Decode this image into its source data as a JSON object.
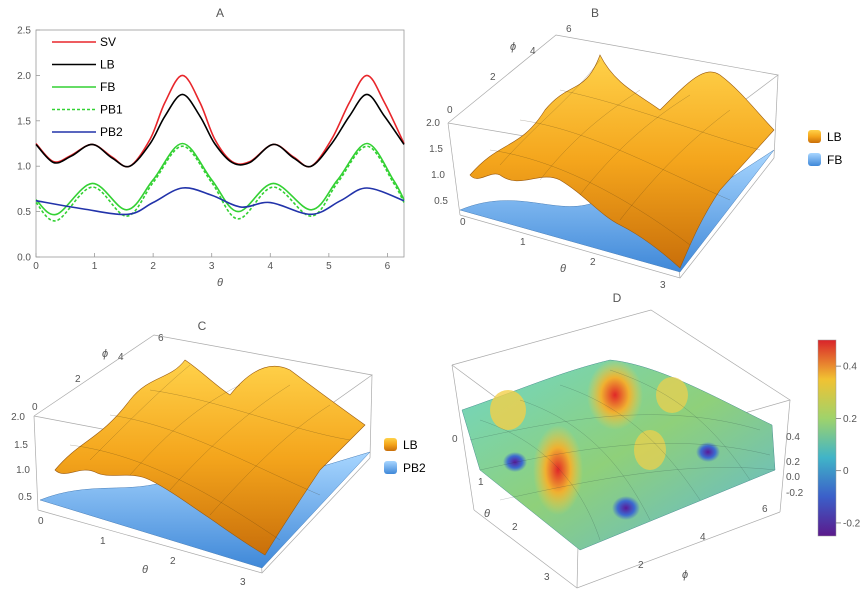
{
  "chart_data": [
    {
      "panel": "A",
      "type": "line",
      "title": "A",
      "xlabel": "θ",
      "ylabel": "",
      "xlim": [
        0,
        6.283
      ],
      "ylim": [
        0,
        2.5
      ],
      "xticks": [
        0,
        1,
        2,
        3,
        4,
        5,
        6
      ],
      "yticks": [
        0.0,
        0.5,
        1.0,
        1.5,
        2.0,
        2.5
      ],
      "ytick_labels": [
        "0.0",
        "0.5",
        "1.0",
        "1.5",
        "2.0",
        "2.5"
      ],
      "legend_position": "top-left",
      "series": [
        {
          "name": "SV",
          "color": "#e8262b",
          "dash": "solid",
          "values": [
            [
              0,
              1.25
            ],
            [
              0.3,
              1.05
            ],
            [
              0.6,
              1.12
            ],
            [
              0.96,
              1.24
            ],
            [
              1.3,
              1.1
            ],
            [
              1.6,
              1.0
            ],
            [
              1.95,
              1.3
            ],
            [
              2.2,
              1.7
            ],
            [
              2.5,
              2.0
            ],
            [
              2.8,
              1.7
            ],
            [
              3.05,
              1.3
            ],
            [
              3.35,
              1.05
            ],
            [
              3.65,
              1.05
            ],
            [
              4.05,
              1.24
            ],
            [
              4.4,
              1.1
            ],
            [
              4.7,
              1.0
            ],
            [
              5.05,
              1.3
            ],
            [
              5.35,
              1.7
            ],
            [
              5.65,
              2.0
            ],
            [
              5.95,
              1.7
            ],
            [
              6.283,
              1.25
            ]
          ]
        },
        {
          "name": "LB",
          "color": "#000000",
          "dash": "solid",
          "values": [
            [
              0,
              1.24
            ],
            [
              0.3,
              1.04
            ],
            [
              0.6,
              1.11
            ],
            [
              0.96,
              1.24
            ],
            [
              1.3,
              1.09
            ],
            [
              1.6,
              1.0
            ],
            [
              1.95,
              1.25
            ],
            [
              2.2,
              1.55
            ],
            [
              2.5,
              1.79
            ],
            [
              2.8,
              1.55
            ],
            [
              3.05,
              1.25
            ],
            [
              3.35,
              1.04
            ],
            [
              3.65,
              1.04
            ],
            [
              4.05,
              1.24
            ],
            [
              4.4,
              1.09
            ],
            [
              4.7,
              1.0
            ],
            [
              5.05,
              1.25
            ],
            [
              5.35,
              1.55
            ],
            [
              5.65,
              1.79
            ],
            [
              5.95,
              1.55
            ],
            [
              6.283,
              1.24
            ]
          ]
        },
        {
          "name": "FB",
          "color": "#33d133",
          "dash": "solid",
          "values": [
            [
              0,
              0.63
            ],
            [
              0.35,
              0.47
            ],
            [
              0.96,
              0.81
            ],
            [
              1.55,
              0.52
            ],
            [
              2.0,
              0.85
            ],
            [
              2.5,
              1.25
            ],
            [
              3.0,
              0.85
            ],
            [
              3.45,
              0.5
            ],
            [
              4.05,
              0.81
            ],
            [
              4.7,
              0.52
            ],
            [
              5.15,
              0.85
            ],
            [
              5.65,
              1.25
            ],
            [
              6.1,
              0.85
            ],
            [
              6.283,
              0.63
            ]
          ]
        },
        {
          "name": "PB1",
          "color": "#33d133",
          "dash": "dashed",
          "values": [
            [
              0,
              0.6
            ],
            [
              0.35,
              0.4
            ],
            [
              0.96,
              0.77
            ],
            [
              1.55,
              0.45
            ],
            [
              2.0,
              0.82
            ],
            [
              2.5,
              1.22
            ],
            [
              3.0,
              0.82
            ],
            [
              3.45,
              0.42
            ],
            [
              4.05,
              0.77
            ],
            [
              4.7,
              0.45
            ],
            [
              5.15,
              0.82
            ],
            [
              5.65,
              1.22
            ],
            [
              6.1,
              0.82
            ],
            [
              6.283,
              0.6
            ]
          ]
        },
        {
          "name": "PB2",
          "color": "#2233aa",
          "dash": "solid",
          "values": [
            [
              0,
              0.62
            ],
            [
              0.8,
              0.53
            ],
            [
              1.57,
              0.47
            ],
            [
              2.0,
              0.6
            ],
            [
              2.5,
              0.76
            ],
            [
              3.0,
              0.68
            ],
            [
              3.5,
              0.55
            ],
            [
              4.0,
              0.6
            ],
            [
              4.7,
              0.47
            ],
            [
              5.2,
              0.62
            ],
            [
              5.65,
              0.76
            ],
            [
              6.283,
              0.62
            ]
          ]
        }
      ]
    },
    {
      "panel": "B",
      "type": "surface3d",
      "title": "B",
      "xlabel": "θ",
      "ylabel": "ϕ",
      "xticks": [
        "0",
        "1",
        "2",
        "3"
      ],
      "yticks": [
        "0",
        "2",
        "4",
        "6"
      ],
      "zticks": [
        "0.5",
        "1.0",
        "1.5",
        "2.0"
      ],
      "legend": [
        {
          "name": "LB",
          "color": "#f0a020"
        },
        {
          "name": "FB",
          "color": "#5aa8e8"
        }
      ]
    },
    {
      "panel": "C",
      "type": "surface3d",
      "title": "C",
      "xlabel": "θ",
      "ylabel": "ϕ",
      "xticks": [
        "0",
        "1",
        "2",
        "3"
      ],
      "yticks": [
        "0",
        "2",
        "4",
        "6"
      ],
      "zticks": [
        "0.5",
        "1.0",
        "1.5",
        "2.0"
      ],
      "legend": [
        {
          "name": "LB",
          "color": "#f0a020"
        },
        {
          "name": "PB2",
          "color": "#5aa8e8"
        }
      ]
    },
    {
      "panel": "D",
      "type": "surface3d",
      "title": "D",
      "xlabel": "θ",
      "ylabel": "ϕ",
      "xticks": [
        "0",
        "1",
        "2",
        "3"
      ],
      "yticks": [
        "2",
        "4",
        "6"
      ],
      "zticks": [
        "-0.2",
        "0.0",
        "0.2",
        "0.4"
      ],
      "colorbar": {
        "range": [
          -0.25,
          0.5
        ],
        "ticks": [
          "0.4",
          "0.2",
          "0",
          "-0.2"
        ],
        "tick_values": [
          0.4,
          0.2,
          0,
          -0.2
        ]
      }
    }
  ]
}
